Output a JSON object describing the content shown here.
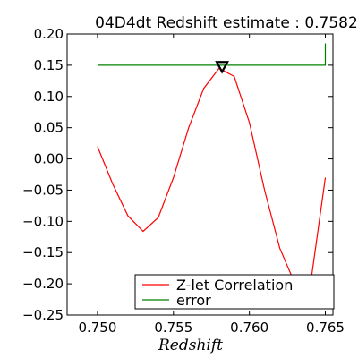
{
  "chart_data": {
    "type": "line",
    "title": "04D4dt Redshift estimate : 0.7582",
    "xlabel": "Redshift",
    "ylabel": "",
    "xlim": [
      0.748,
      0.7655
    ],
    "ylim": [
      -0.25,
      0.2
    ],
    "xticks": [
      0.75,
      0.755,
      0.76,
      0.765
    ],
    "xtick_labels": [
      "0.750",
      "0.755",
      "0.760",
      "0.765"
    ],
    "yticks": [
      -0.25,
      -0.2,
      -0.15,
      -0.1,
      -0.05,
      0.0,
      0.05,
      0.1,
      0.15,
      0.2
    ],
    "ytick_labels": [
      "−0.25",
      "−0.20",
      "−0.15",
      "−0.10",
      "−0.05",
      "0.00",
      "0.05",
      "0.10",
      "0.15",
      "0.20"
    ],
    "grid": false,
    "legend_position": "bottom-right",
    "series": [
      {
        "name": "Z-let Correlation",
        "color": "#ff0000",
        "x": [
          0.75,
          0.751,
          0.752,
          0.753,
          0.754,
          0.755,
          0.756,
          0.757,
          0.758,
          0.759,
          0.76,
          0.761,
          0.762,
          0.763,
          0.764,
          0.765
        ],
        "y": [
          0.02,
          -0.04,
          -0.091,
          -0.116,
          -0.094,
          -0.03,
          0.05,
          0.113,
          0.145,
          0.132,
          0.058,
          -0.05,
          -0.143,
          -0.2,
          -0.205,
          -0.03
        ]
      },
      {
        "name": "error",
        "color": "#008000",
        "x": [
          0.75,
          0.765,
          0.765
        ],
        "y": [
          0.15,
          0.15,
          0.185
        ]
      }
    ],
    "marker": {
      "x": 0.7582,
      "y": 0.148,
      "shape": "triangle-down"
    }
  }
}
